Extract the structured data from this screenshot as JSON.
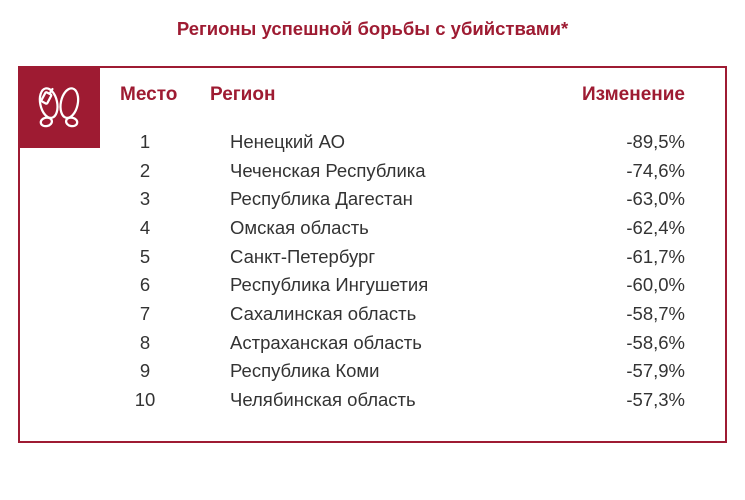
{
  "title": "Регионы успешной борьбы с убийствами*",
  "colors": {
    "accent": "#9e1b32",
    "text_dark": "#333333",
    "background": "#ffffff",
    "icon_stroke": "#ffffff"
  },
  "icon_name": "footprints-icon",
  "columns": {
    "place": "Место",
    "region": "Регион",
    "change": "Изменение"
  },
  "rows": [
    {
      "place": "1",
      "region": "Ненецкий АО",
      "change": "-89,5%"
    },
    {
      "place": "2",
      "region": "Чеченская Республика",
      "change": "-74,6%"
    },
    {
      "place": "3",
      "region": "Республика Дагестан",
      "change": "-63,0%"
    },
    {
      "place": "4",
      "region": "Омская область",
      "change": "-62,4%"
    },
    {
      "place": "5",
      "region": "Санкт-Петербург",
      "change": "-61,7%"
    },
    {
      "place": "6",
      "region": "Республика Ингушетия",
      "change": "-60,0%"
    },
    {
      "place": "7",
      "region": "Сахалинская область",
      "change": "-58,7%"
    },
    {
      "place": "8",
      "region": "Астраханская область",
      "change": "-58,6%"
    },
    {
      "place": "9",
      "region": "Республика Коми",
      "change": "-57,9%"
    },
    {
      "place": "10",
      "region": "Челябинская область",
      "change": "-57,3%"
    }
  ]
}
